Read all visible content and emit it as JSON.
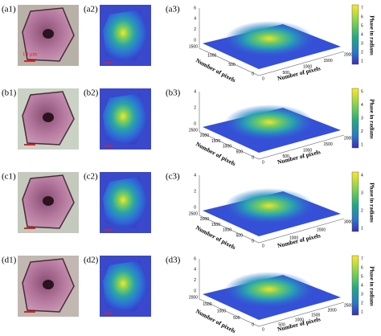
{
  "panels": [
    {
      "labels": [
        "(a1)",
        "(a2)",
        "(a3)"
      ],
      "scale_bar": "10 μm",
      "plot": {
        "x_label": "Number of pixels",
        "y_label": "Number of pixels",
        "z_ticks": [
          0,
          2,
          4,
          6
        ],
        "left_ticks": [
          1500,
          1000,
          500,
          0
        ],
        "right_ticks": [
          0,
          500,
          1000,
          1500,
          2000
        ]
      },
      "colorbar": {
        "label": "Phase in radians",
        "ticks": [
          7,
          6,
          5,
          4,
          3,
          2,
          1
        ]
      }
    },
    {
      "labels": [
        "(b1)",
        "(b2)",
        "(b3)"
      ],
      "plot": {
        "x_label": "Number of pixels",
        "y_label": "Number of pixels",
        "z_ticks": [
          0,
          2,
          4
        ],
        "left_ticks": [
          2500,
          2000,
          1500,
          1000,
          500,
          0
        ],
        "right_ticks": [
          0,
          500,
          1000,
          1500,
          2000
        ]
      },
      "colorbar": {
        "label": "Phase in radians",
        "ticks": [
          5,
          4,
          3,
          2,
          1
        ]
      }
    },
    {
      "labels": [
        "(c1)",
        "(c2)",
        "(c3)"
      ],
      "plot": {
        "x_label": "Number of pixels",
        "y_label": "Number of pixels",
        "z_ticks": [
          0,
          2,
          4
        ],
        "left_ticks": [
          2500,
          2000,
          1500,
          1000,
          500,
          0
        ],
        "right_ticks": [
          0,
          1000,
          2000,
          3000
        ]
      },
      "colorbar": {
        "label": "Phase in radians",
        "ticks": [
          4,
          3,
          2,
          1
        ]
      }
    },
    {
      "labels": [
        "(d1)",
        "(d2)",
        "(d3)"
      ],
      "plot": {
        "x_label": "Number of pixels",
        "y_label": "Number of pixels",
        "z_ticks": [
          0,
          2,
          4,
          6
        ],
        "left_ticks": [
          2000,
          1500,
          1000,
          500,
          0
        ],
        "right_ticks": [
          0,
          500,
          1000,
          1500,
          2000,
          2500
        ]
      },
      "colorbar": {
        "label": "Phase in radians",
        "ticks": [
          7,
          6,
          5,
          4,
          3,
          2,
          1
        ]
      }
    }
  ]
}
